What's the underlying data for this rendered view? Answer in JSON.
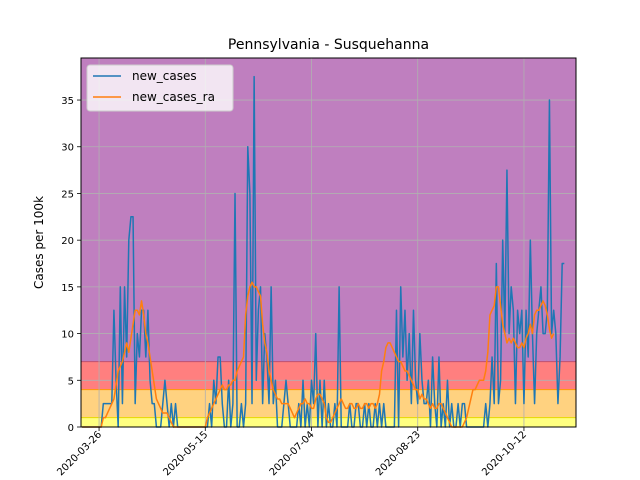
{
  "chart_data": {
    "type": "line",
    "title": "Pennsylvania - Susquehanna",
    "xlabel": "",
    "ylabel": "Cases per 100k",
    "ylim": [
      0,
      39.5
    ],
    "yticks": [
      0,
      5,
      10,
      15,
      20,
      25,
      30,
      35
    ],
    "grid": true,
    "legend_position": "top-left",
    "x_dates": [
      "2020-03-18",
      "2020-03-19",
      "2020-03-20",
      "2020-03-21",
      "2020-03-22",
      "2020-03-23",
      "2020-03-24",
      "2020-03-25",
      "2020-03-26",
      "2020-03-27",
      "2020-03-28",
      "2020-03-29",
      "2020-03-30",
      "2020-03-31",
      "2020-04-01",
      "2020-04-02",
      "2020-04-03",
      "2020-04-04",
      "2020-04-05",
      "2020-04-06",
      "2020-04-07",
      "2020-04-08",
      "2020-04-09",
      "2020-04-10",
      "2020-04-11",
      "2020-04-12",
      "2020-04-13",
      "2020-04-14",
      "2020-04-15",
      "2020-04-16",
      "2020-04-17",
      "2020-04-18",
      "2020-04-19",
      "2020-04-20",
      "2020-04-21",
      "2020-04-22",
      "2020-04-23",
      "2020-04-24",
      "2020-04-25",
      "2020-04-26",
      "2020-04-27",
      "2020-04-28",
      "2020-04-29",
      "2020-04-30",
      "2020-05-01",
      "2020-05-02",
      "2020-05-03",
      "2020-05-04",
      "2020-05-05",
      "2020-05-06",
      "2020-05-07",
      "2020-05-08",
      "2020-05-09",
      "2020-05-10",
      "2020-05-11",
      "2020-05-12",
      "2020-05-13",
      "2020-05-14",
      "2020-05-15",
      "2020-05-16",
      "2020-05-17",
      "2020-05-18",
      "2020-05-19",
      "2020-05-20",
      "2020-05-21",
      "2020-05-22",
      "2020-05-23",
      "2020-05-24",
      "2020-05-25",
      "2020-05-26",
      "2020-05-27",
      "2020-05-28",
      "2020-05-29",
      "2020-05-30",
      "2020-05-31",
      "2020-06-01",
      "2020-06-02",
      "2020-06-03",
      "2020-06-04",
      "2020-06-05",
      "2020-06-06",
      "2020-06-07",
      "2020-06-08",
      "2020-06-09",
      "2020-06-10",
      "2020-06-11",
      "2020-06-12",
      "2020-06-13",
      "2020-06-14",
      "2020-06-15",
      "2020-06-16",
      "2020-06-17",
      "2020-06-18",
      "2020-06-19",
      "2020-06-20",
      "2020-06-21",
      "2020-06-22",
      "2020-06-23",
      "2020-06-24",
      "2020-06-25",
      "2020-06-26",
      "2020-06-27",
      "2020-06-28",
      "2020-06-29",
      "2020-06-30",
      "2020-07-01",
      "2020-07-02",
      "2020-07-03",
      "2020-07-04",
      "2020-07-05",
      "2020-07-06",
      "2020-07-07",
      "2020-07-08",
      "2020-07-09",
      "2020-07-10",
      "2020-07-11",
      "2020-07-12",
      "2020-07-13",
      "2020-07-14",
      "2020-07-15",
      "2020-07-16",
      "2020-07-17",
      "2020-07-18",
      "2020-07-19",
      "2020-07-20",
      "2020-07-21",
      "2020-07-22",
      "2020-07-23",
      "2020-07-24",
      "2020-07-25",
      "2020-07-26",
      "2020-07-27",
      "2020-07-28",
      "2020-07-29",
      "2020-07-30",
      "2020-07-31",
      "2020-08-01",
      "2020-08-02",
      "2020-08-03",
      "2020-08-04",
      "2020-08-05",
      "2020-08-06",
      "2020-08-07",
      "2020-08-08",
      "2020-08-09",
      "2020-08-10",
      "2020-08-11",
      "2020-08-12",
      "2020-08-13",
      "2020-08-14",
      "2020-08-15",
      "2020-08-16",
      "2020-08-17",
      "2020-08-18",
      "2020-08-19",
      "2020-08-20",
      "2020-08-21",
      "2020-08-22",
      "2020-08-23",
      "2020-08-24",
      "2020-08-25",
      "2020-08-26",
      "2020-08-27",
      "2020-08-28",
      "2020-08-29",
      "2020-08-30",
      "2020-08-31",
      "2020-09-01",
      "2020-09-02",
      "2020-09-03",
      "2020-09-04",
      "2020-09-05",
      "2020-09-06",
      "2020-09-07",
      "2020-09-08",
      "2020-09-09",
      "2020-09-10",
      "2020-09-11",
      "2020-09-12",
      "2020-09-13",
      "2020-09-14",
      "2020-09-15",
      "2020-09-16",
      "2020-09-17",
      "2020-09-18",
      "2020-09-19",
      "2020-09-20",
      "2020-09-21",
      "2020-09-22",
      "2020-09-23",
      "2020-09-24",
      "2020-09-25",
      "2020-09-26",
      "2020-09-27",
      "2020-09-28",
      "2020-09-29",
      "2020-09-30",
      "2020-10-01",
      "2020-10-02",
      "2020-10-03",
      "2020-10-04",
      "2020-10-05",
      "2020-10-06",
      "2020-10-07",
      "2020-10-08",
      "2020-10-09",
      "2020-10-10",
      "2020-10-11",
      "2020-10-12",
      "2020-10-13",
      "2020-10-14",
      "2020-10-15",
      "2020-10-16",
      "2020-10-17",
      "2020-10-18",
      "2020-10-19",
      "2020-10-20",
      "2020-10-21",
      "2020-10-22",
      "2020-10-23",
      "2020-10-24",
      "2020-10-25",
      "2020-10-26",
      "2020-10-27",
      "2020-10-28",
      "2020-10-29",
      "2020-10-30",
      "2020-10-31"
    ],
    "x_tick_labels": [
      "2020-03-26",
      "2020-05-15",
      "2020-07-04",
      "2020-08-23",
      "2020-10-12"
    ],
    "series": [
      {
        "name": "new_cases",
        "color": "#1f77b4",
        "values": [
          0,
          0,
          0,
          0,
          0,
          0,
          0,
          0,
          0,
          0,
          2.5,
          2.5,
          2.5,
          2.5,
          2.5,
          12.5,
          5,
          0,
          15,
          2.5,
          15,
          7.5,
          20,
          22.5,
          22.5,
          2.5,
          10,
          7.5,
          12.5,
          12.5,
          7.5,
          12.5,
          5,
          2.5,
          2.5,
          0,
          0,
          0,
          2.5,
          5,
          2.5,
          0,
          2.5,
          0,
          2.5,
          0,
          0,
          0,
          0,
          0,
          0,
          0,
          0,
          0,
          0,
          0,
          0,
          0,
          0,
          0,
          2.5,
          0,
          5,
          2.5,
          7.5,
          7.5,
          2.5,
          0,
          0,
          5,
          0,
          2.5,
          25,
          0,
          0,
          2.5,
          0,
          2.5,
          30,
          25,
          2.5,
          37.5,
          5,
          12.5,
          15,
          2.5,
          10,
          7.5,
          2.5,
          15,
          2.5,
          5,
          0,
          0,
          0,
          2.5,
          5,
          2.5,
          0,
          0,
          0,
          0,
          2.5,
          0,
          5,
          0,
          2.5,
          0,
          5,
          2.5,
          10,
          0,
          5,
          0,
          5,
          0,
          2.5,
          0,
          0,
          2.5,
          0,
          15,
          0,
          0,
          0,
          0,
          2.5,
          0,
          0,
          2.5,
          2.5,
          0,
          0,
          2.5,
          0,
          2.5,
          0,
          0,
          2.5,
          0,
          2.5,
          0,
          2.5,
          0,
          0,
          0,
          0,
          0,
          12.5,
          0,
          15,
          7.5,
          12.5,
          5,
          10,
          2.5,
          12.5,
          5,
          2.5,
          10,
          5,
          2.5,
          2.5,
          5,
          0,
          7.5,
          2.5,
          0,
          7.5,
          0,
          2.5,
          0,
          5,
          0,
          2.5,
          0,
          0,
          2.5,
          0,
          2.5,
          2.5,
          0,
          0,
          0,
          0,
          0,
          0,
          0,
          0,
          0,
          2.5,
          0,
          2.5,
          7.5,
          2.5,
          17.5,
          2.5,
          5,
          20,
          10,
          27.5,
          10,
          15,
          12.5,
          2.5,
          12.5,
          10,
          12.5,
          2.5,
          12.5,
          7.5,
          20,
          10,
          2.5,
          10,
          12.5,
          15,
          10,
          10,
          12.5,
          35,
          10,
          12.5,
          10,
          2.5,
          7.5,
          17.5,
          17.5
        ]
      },
      {
        "name": "new_cases_ra",
        "color": "#ff7f0e",
        "values": [
          0,
          0,
          0,
          0,
          0,
          0,
          0,
          0,
          0,
          0,
          1,
          1,
          1.5,
          2,
          2.5,
          3,
          4.5,
          6,
          6.5,
          7,
          8,
          9,
          8,
          9.5,
          11,
          12.5,
          12.5,
          12,
          13.5,
          12,
          10,
          9,
          7.5,
          6,
          4.5,
          3,
          2.5,
          2,
          1.5,
          1.5,
          1.5,
          1,
          0.5,
          0,
          0,
          0,
          0,
          0,
          0,
          0,
          0,
          0,
          0,
          0,
          0,
          0,
          0,
          0,
          0,
          1,
          1.5,
          2,
          2.5,
          3,
          3.5,
          4,
          4.5,
          4,
          4,
          4.5,
          4.5,
          5,
          5,
          6,
          6.5,
          7,
          7.5,
          12,
          14,
          15,
          15.5,
          15,
          15,
          14.5,
          14,
          11,
          9,
          8,
          6,
          5,
          4,
          3.5,
          3,
          3,
          2.5,
          2.5,
          2.5,
          2.5,
          2,
          1.5,
          1,
          1.5,
          2,
          2.5,
          2.5,
          3,
          2.5,
          2.5,
          2,
          2,
          3,
          3.5,
          3.5,
          3,
          2.5,
          1,
          0.5,
          0.5,
          1,
          1.5,
          2,
          2.5,
          3,
          2.5,
          2,
          2,
          2.5,
          2.5,
          2,
          2,
          2.5,
          2,
          2,
          2.5,
          2.5,
          2,
          2.5,
          2.5,
          2,
          2.5,
          3.5,
          6,
          7,
          8.5,
          9,
          9,
          8.5,
          8,
          7.5,
          7,
          7,
          6.5,
          6,
          6,
          5.5,
          5,
          4.5,
          4,
          4,
          3,
          3.5,
          3,
          3,
          2.5,
          2,
          2.5,
          2,
          2,
          2.5,
          2.5,
          2,
          1.5,
          1,
          0.5,
          0,
          0,
          0,
          0,
          0,
          0,
          0.5,
          1,
          2,
          3,
          4,
          4,
          4.5,
          5,
          5,
          5,
          6,
          8,
          12,
          12.5,
          13,
          15,
          15,
          13,
          11,
          10,
          9,
          9.5,
          9,
          9.5,
          9,
          8.5,
          8.5,
          9,
          8.5,
          9.5,
          10,
          11,
          10,
          12,
          12.5,
          12.5,
          13,
          13.5,
          13,
          12,
          10.5,
          9.5,
          10
        ]
      }
    ],
    "bands": [
      {
        "from": 0,
        "to": 1,
        "color": "#ffff80"
      },
      {
        "from": 1,
        "to": 4,
        "color": "#ffd280"
      },
      {
        "from": 4,
        "to": 7,
        "color": "#ff7f7f"
      },
      {
        "from": 7,
        "to": 39.5,
        "color": "#bf7fbf"
      }
    ]
  }
}
